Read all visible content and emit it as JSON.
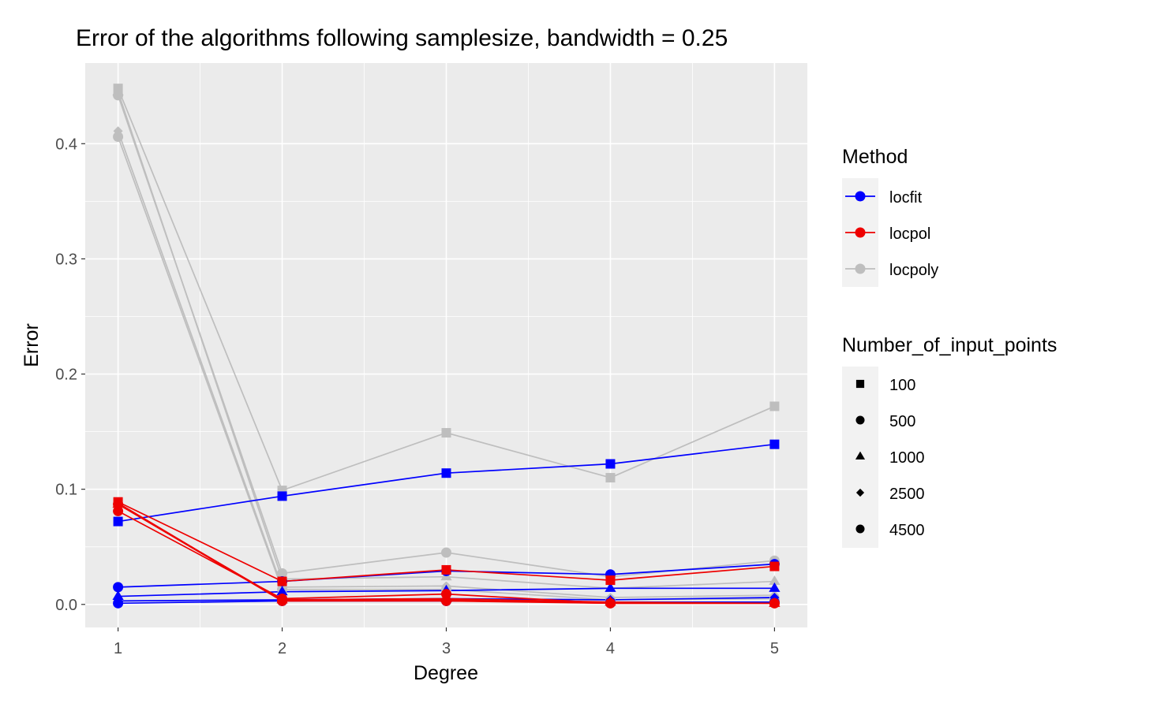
{
  "chart_data": {
    "type": "line",
    "title": "Error of the algorithms following samplesize, bandwidth = 0.25",
    "xlabel": "Degree",
    "ylabel": "Error",
    "x": [
      1,
      2,
      3,
      4,
      5
    ],
    "xticks": [
      "1",
      "2",
      "3",
      "4",
      "5"
    ],
    "yticks": [
      "0.0",
      "0.1",
      "0.2",
      "0.3",
      "0.4"
    ],
    "xlim": [
      0.8,
      5.2
    ],
    "ylim": [
      -0.02,
      0.47
    ],
    "grid": true,
    "legend_placement": "right",
    "colors": {
      "locfit": "#0000FF",
      "locpol": "#EE0000",
      "locpoly": "#BEBEBE",
      "panel": "#EBEBEB",
      "grid": "#FFFFFF"
    },
    "legends": [
      {
        "title": "Method",
        "entries": [
          "locfit",
          "locpol",
          "locpoly"
        ]
      },
      {
        "title": "Number_of_input_points",
        "entries": [
          "100",
          "500",
          "1000",
          "2500",
          "4500"
        ],
        "shapes": [
          "square",
          "circle",
          "triangle",
          "diamond",
          "circle"
        ]
      }
    ],
    "series": [
      {
        "method": "locpoly",
        "points": "100",
        "shape": "square",
        "values": [
          0.448,
          0.099,
          0.149,
          0.11,
          0.172
        ]
      },
      {
        "method": "locpoly",
        "points": "500",
        "shape": "circle",
        "values": [
          0.442,
          0.027,
          0.045,
          0.024,
          0.038
        ]
      },
      {
        "method": "locpoly",
        "points": "1000",
        "shape": "triangle",
        "values": [
          0.445,
          0.022,
          0.024,
          0.014,
          0.02
        ]
      },
      {
        "method": "locpoly",
        "points": "2500",
        "shape": "diamond",
        "values": [
          0.411,
          0.015,
          0.016,
          0.006,
          0.008
        ]
      },
      {
        "method": "locpoly",
        "points": "4500",
        "shape": "circle",
        "values": [
          0.406,
          0.013,
          0.013,
          0.004,
          0.005
        ]
      },
      {
        "method": "locfit",
        "points": "100",
        "shape": "square",
        "values": [
          0.072,
          0.094,
          0.114,
          0.122,
          0.139
        ]
      },
      {
        "method": "locfit",
        "points": "500",
        "shape": "circle",
        "values": [
          0.015,
          0.02,
          0.029,
          0.026,
          0.035
        ]
      },
      {
        "method": "locfit",
        "points": "1000",
        "shape": "triangle",
        "values": [
          0.007,
          0.011,
          0.012,
          0.014,
          0.014
        ]
      },
      {
        "method": "locfit",
        "points": "2500",
        "shape": "diamond",
        "values": [
          0.003,
          0.004,
          0.005,
          0.004,
          0.006
        ]
      },
      {
        "method": "locfit",
        "points": "4500",
        "shape": "circle",
        "values": [
          0.001,
          0.003,
          0.003,
          0.002,
          0.002
        ]
      },
      {
        "method": "locpol",
        "points": "100",
        "shape": "square",
        "values": [
          0.089,
          0.02,
          0.03,
          0.021,
          0.033
        ]
      },
      {
        "method": "locpol",
        "points": "500",
        "shape": "circle",
        "values": [
          0.081,
          0.005,
          0.009,
          0.001,
          0.001
        ]
      },
      {
        "method": "locpol",
        "points": "1000",
        "shape": "triangle",
        "values": [
          0.087,
          0.004,
          0.005,
          0.002,
          0.001
        ]
      },
      {
        "method": "locpol",
        "points": "2500",
        "shape": "diamond",
        "values": [
          0.088,
          0.003,
          0.004,
          0.001,
          0.001
        ]
      },
      {
        "method": "locpol",
        "points": "4500",
        "shape": "circle",
        "values": [
          0.087,
          0.003,
          0.003,
          0.001,
          0.001
        ]
      }
    ]
  }
}
